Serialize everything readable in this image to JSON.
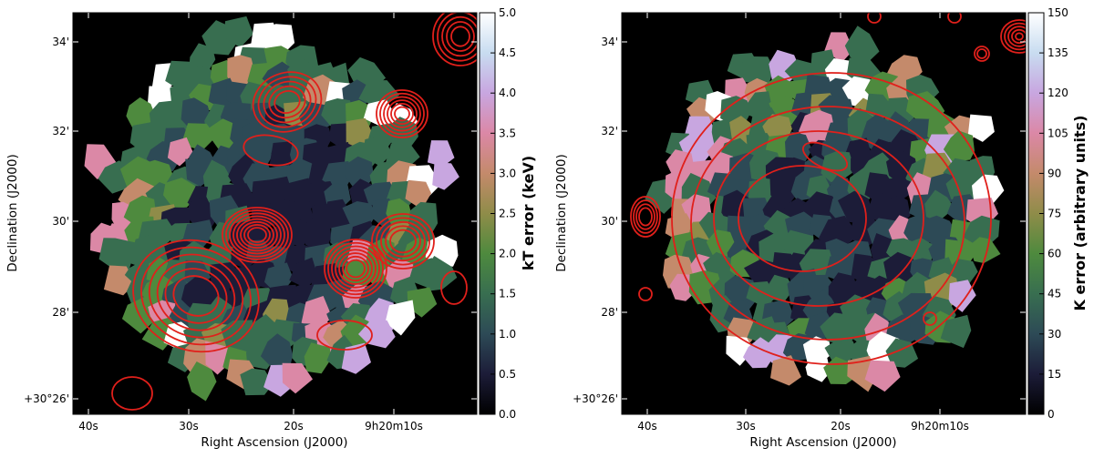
{
  "colors": {
    "background": "#000000",
    "contour": "#e0201b",
    "colormap": [
      "#000000",
      "#1c1c38",
      "#2d4a56",
      "#386e50",
      "#4e8a3e",
      "#8f8c49",
      "#c48a6b",
      "#db88a6",
      "#c8a6e0",
      "#c8dcf0",
      "#ffffff"
    ]
  },
  "chart_data": [
    {
      "type": "heatmap",
      "panel": "left",
      "xlabel": "Right Ascension (J2000)",
      "ylabel": "Declination (J2000)",
      "x_ticks": [
        "40s",
        "30s",
        "20s",
        "9h20m10s"
      ],
      "y_ticks": [
        "+30°26'",
        "28'",
        "30'",
        "32'",
        "34'"
      ],
      "colorbar": {
        "label": "kT error (keV)",
        "min": 0.0,
        "max": 5.0,
        "ticks": [
          "0.0",
          "0.5",
          "1.0",
          "1.5",
          "2.0",
          "2.5",
          "3.0",
          "3.5",
          "4.0",
          "4.5",
          "5.0"
        ]
      },
      "contour_overlay": "red contours",
      "grid": false
    },
    {
      "type": "heatmap",
      "panel": "right",
      "xlabel": "Right Ascension (J2000)",
      "ylabel": "Declination (J2000)",
      "x_ticks": [
        "40s",
        "30s",
        "20s",
        "9h20m10s"
      ],
      "y_ticks": [
        "+30°26'",
        "28'",
        "30'",
        "32'",
        "34'"
      ],
      "colorbar": {
        "label": "K error (arbitrary units)",
        "min": 0,
        "max": 150,
        "ticks": [
          "0",
          "15",
          "30",
          "45",
          "60",
          "75",
          "90",
          "105",
          "120",
          "135",
          "150"
        ]
      },
      "contour_overlay": "red contours",
      "grid": false
    }
  ]
}
